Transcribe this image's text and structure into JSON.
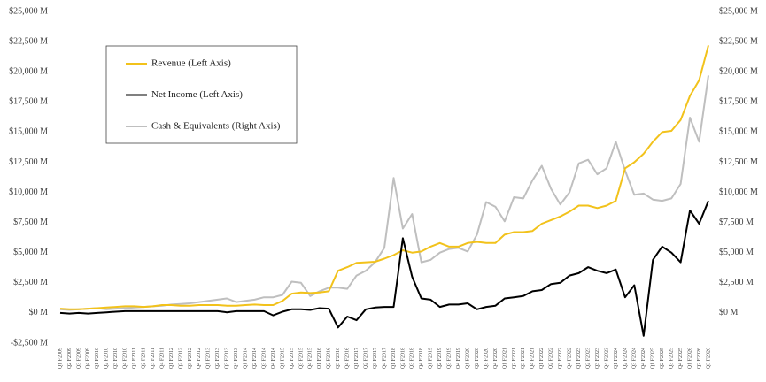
{
  "chart_data": {
    "type": "line",
    "categories": [
      "Q1 F2009",
      "Q2 F2009",
      "Q3 F2009",
      "Q4 F2009",
      "Q1 F2010",
      "Q2 F2010",
      "Q3 F2010",
      "Q4 F2010",
      "Q1 F2011",
      "Q2 F2011",
      "Q3 F2011",
      "Q4 F2011",
      "Q1 F2012",
      "Q2 F2012",
      "Q3 F2012",
      "Q4 F2012",
      "Q1 F2013",
      "Q2 F2013",
      "Q3 F2013",
      "Q4 F2013",
      "Q1 F2014",
      "Q2 F2014",
      "Q3 F2014",
      "Q4 F2014",
      "Q1 F2015",
      "Q2 F2015",
      "Q3 F2015",
      "Q4 F2015",
      "Q1 F2016",
      "Q2 F2016",
      "Q3 F2016",
      "Q4 F2016",
      "Q1 F2017",
      "Q2 F2017",
      "Q3 F2017",
      "Q4 F2017",
      "Q1 F2018",
      "Q2 F2018",
      "Q3 F2018",
      "Q4 F2018",
      "Q1 F2019",
      "Q2 F2019",
      "Q3 F2019",
      "Q4 F2019",
      "Q1 F2020",
      "Q2 F2020",
      "Q3 F2020",
      "Q4 F2020",
      "Q1 F2021",
      "Q2 F2021",
      "Q3 F2021",
      "Q4 F2021",
      "Q1 F2022",
      "Q2 F2022",
      "Q3 F2022",
      "Q4 F2022",
      "Q1 F2023",
      "Q2 F2023",
      "Q3 F2023",
      "Q4 F2023",
      "Q1 F2024",
      "Q2 F2024",
      "Q3 F2024",
      "Q4 F2024",
      "Q1 F2025",
      "Q2 F2025",
      "Q3 F2025",
      "Q4 F2025",
      "Q1 F2026",
      "Q2 F2026",
      "Q3 F2026"
    ],
    "series": [
      {
        "name": "Revenue (Left Axis)",
        "color": "#f2c21b",
        "axis": "y",
        "values": [
          350,
          300,
          300,
          350,
          400,
          450,
          500,
          550,
          550,
          500,
          550,
          650,
          650,
          600,
          600,
          650,
          650,
          650,
          600,
          600,
          650,
          700,
          650,
          650,
          1000,
          1600,
          1700,
          1650,
          1700,
          1800,
          3500,
          3800,
          4150,
          4200,
          4250,
          4500,
          4800,
          5200,
          5000,
          5100,
          5500,
          5800,
          5500,
          5500,
          5800,
          5900,
          5800,
          5800,
          6500,
          6700,
          6700,
          6800,
          7400,
          7700,
          8000,
          8400,
          8900,
          8900,
          8700,
          8900,
          9300,
          12000,
          12500,
          13200,
          14200,
          15000,
          15100,
          16000,
          18000,
          19300,
          22200
        ]
      },
      {
        "name": "Net Income (Left Axis)",
        "color": "#000000",
        "axis": "y",
        "values": [
          0,
          -50,
          0,
          -50,
          0,
          50,
          100,
          150,
          150,
          150,
          150,
          150,
          150,
          150,
          150,
          150,
          150,
          150,
          50,
          150,
          150,
          150,
          150,
          -200,
          100,
          300,
          300,
          250,
          400,
          350,
          -1200,
          -300,
          -600,
          300,
          450,
          500,
          500,
          6200,
          3000,
          1200,
          1100,
          500,
          700,
          700,
          800,
          300,
          500,
          600,
          1200,
          1300,
          1400,
          1800,
          1900,
          2400,
          2500,
          3100,
          3300,
          3800,
          3500,
          3300,
          3600,
          1300,
          2300,
          -1900,
          4400,
          5500,
          5000,
          4200,
          8500,
          7400,
          9300
        ]
      },
      {
        "name": "Cash & Equivalents (Right Axis)",
        "color": "#bfbfbf",
        "axis": "y2",
        "values": [
          300,
          250,
          300,
          350,
          400,
          300,
          350,
          400,
          450,
          500,
          550,
          600,
          700,
          750,
          800,
          900,
          1000,
          1100,
          1200,
          900,
          1000,
          1100,
          1300,
          1300,
          1500,
          2600,
          2500,
          1400,
          1800,
          2100,
          2100,
          2000,
          3100,
          3500,
          4200,
          5400,
          11200,
          7000,
          8200,
          4200,
          4400,
          5000,
          5300,
          5400,
          5100,
          6500,
          9200,
          8800,
          7600,
          9600,
          9500,
          11000,
          12200,
          10300,
          9000,
          10000,
          12400,
          12700,
          11500,
          12000,
          14200,
          11800,
          9800,
          9900,
          9400,
          9300,
          9500,
          10700,
          16200,
          14200,
          19700
        ]
      }
    ],
    "ylim": [
      -2500,
      25000
    ],
    "yticks": [
      {
        "value": -2500,
        "label": "-$2,500 M"
      },
      {
        "value": 0,
        "label": "$0 M"
      },
      {
        "value": 2500,
        "label": "$2,500 M"
      },
      {
        "value": 5000,
        "label": "$5,000 M"
      },
      {
        "value": 7500,
        "label": "$7,500 M"
      },
      {
        "value": 10000,
        "label": "$10,000 M"
      },
      {
        "value": 12500,
        "label": "$12,500 M"
      },
      {
        "value": 15000,
        "label": "$15,000 M"
      },
      {
        "value": 17500,
        "label": "$17,500 M"
      },
      {
        "value": 20000,
        "label": "$20,000 M"
      },
      {
        "value": 22500,
        "label": "$22,500 M"
      },
      {
        "value": 25000,
        "label": "$25,000 M"
      }
    ],
    "y2lim": [
      -2500,
      25000
    ],
    "y2ticks": [
      {
        "value": 0,
        "label": "$0 M"
      },
      {
        "value": 2500,
        "label": "$2,500 M"
      },
      {
        "value": 5000,
        "label": "$5,000 M"
      },
      {
        "value": 7500,
        "label": "$7,500 M"
      },
      {
        "value": 10000,
        "label": "$10,000 M"
      },
      {
        "value": 12500,
        "label": "$12,500 M"
      },
      {
        "value": 15000,
        "label": "$15,000 M"
      },
      {
        "value": 17500,
        "label": "$17,500 M"
      },
      {
        "value": 20000,
        "label": "$20,000 M"
      },
      {
        "value": 22500,
        "label": "$22,500 M"
      },
      {
        "value": 25000,
        "label": "$25,000 M"
      }
    ],
    "grid": false
  }
}
